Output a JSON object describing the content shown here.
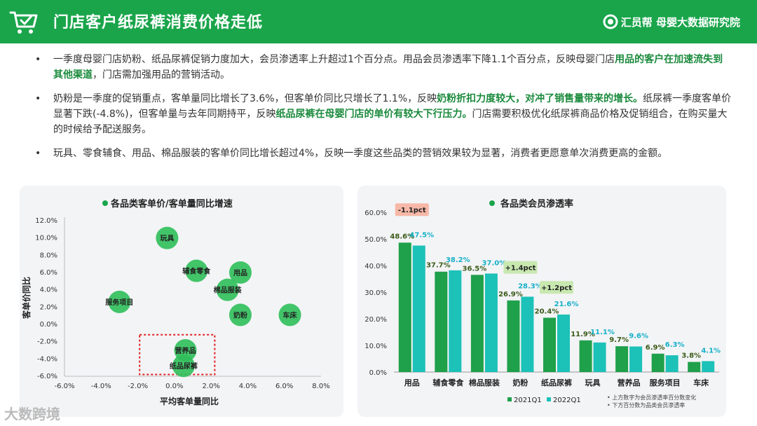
{
  "header": {
    "title": "门店客户纸尿裤消费价格走低",
    "brand": "汇员帮 母婴大数据研究院",
    "cart_icon": "shopping-cart-check-icon",
    "header_color": "#1aa54b"
  },
  "bullets": [
    {
      "parts": [
        {
          "t": "一季度母婴门店奶粉、纸品尿裤促销力度加大，会员渗透率上升超过1个百分点。用品会员渗透率下降1.1个百分点，反映母婴门店",
          "hl": false
        },
        {
          "t": "用品的客户在加速流失到其他渠道",
          "hl": true
        },
        {
          "t": "，门店需加强用品的营销活动。",
          "hl": false
        }
      ]
    },
    {
      "parts": [
        {
          "t": "奶粉是一季度的促销重点，客单量同比增长了3.6%，但客单价同比只增长了1.1%，反映",
          "hl": false
        },
        {
          "t": "奶粉折扣力度较大，对冲了销售量带来的增长。",
          "hl": true
        },
        {
          "t": "纸尿裤一季度客单价显著下跌(-4.8%)，但客单量与去年同期持平，反映",
          "hl": false
        },
        {
          "t": "纸品尿裤在母婴门店的单价有较大下行压力。",
          "hl": true
        },
        {
          "t": "门店需要积极优化纸尿裤商品价格及促销组合，在购买量大的时候给予配送服务。",
          "hl": false
        }
      ]
    },
    {
      "parts": [
        {
          "t": "玩具、零食辅食、用品、棉品服装的客单价同比增长超过4%，反映一季度这些品类的营销效果较为显著，消费者更愿意单次消费更高的金额。",
          "hl": false
        }
      ]
    }
  ],
  "chart_data": [
    {
      "type": "scatter",
      "title": "各品类客单价/客单量同比增速",
      "xlabel": "平均客单量同比",
      "ylabel": "客单价同比",
      "xlim": [
        -6.0,
        8.0
      ],
      "ylim": [
        -6.0,
        12.0
      ],
      "xticks": [
        "-6.0%",
        "-4.0%",
        "-2.0%",
        "0.0%",
        "2.0%",
        "4.0%",
        "6.0%",
        "8.0%"
      ],
      "yticks": [
        "12.0%",
        "10.0%",
        "8.0%",
        "6.0%",
        "4.0%",
        "2.0%",
        "0.0%",
        "-2.0%",
        "-4.0%",
        "-6.0%"
      ],
      "points": [
        {
          "label": "玩具",
          "x": -0.4,
          "y": 10.0
        },
        {
          "label": "辅食零食",
          "x": 1.2,
          "y": 6.2
        },
        {
          "label": "用品",
          "x": 3.6,
          "y": 6.0
        },
        {
          "label": "棉品服装",
          "x": 2.9,
          "y": 4.0
        },
        {
          "label": "服务项目",
          "x": -3.0,
          "y": 2.6
        },
        {
          "label": "奶粉",
          "x": 3.6,
          "y": 1.1
        },
        {
          "label": "车床",
          "x": 6.3,
          "y": 1.1
        },
        {
          "label": "营养品",
          "x": 0.6,
          "y": -3.0
        },
        {
          "label": "纸品尿裤",
          "x": 0.5,
          "y": -4.8
        }
      ],
      "highlight_box": {
        "x_range": [
          -1.9,
          2.2
        ],
        "y_range": [
          -5.8,
          -1.2
        ]
      },
      "point_color": "#2fbf5a",
      "highlight_color": "#e02020"
    },
    {
      "type": "bar",
      "title": "各品类会员渗透率",
      "categories": [
        "用品",
        "辅食零食",
        "棉品服装",
        "奶粉",
        "纸品尿裤",
        "玩具",
        "营养品",
        "服务项目",
        "车床"
      ],
      "series": [
        {
          "name": "2021Q1",
          "values": [
            48.6,
            37.7,
            36.5,
            26.9,
            20.4,
            11.9,
            9.7,
            6.9,
            3.8
          ],
          "labels": [
            "48.6%",
            "37.7%",
            "36.5%",
            "26.9%",
            "20.4%",
            "11.9%",
            "9.7%",
            "6.9%",
            "3.8%"
          ],
          "color": "#1fa04a"
        },
        {
          "name": "2022Q1",
          "values": [
            47.5,
            38.2,
            37.0,
            28.3,
            21.6,
            11.1,
            9.6,
            6.3,
            4.1
          ],
          "labels": [
            "47.5%",
            "38.2%",
            "37.0%",
            "28.3%",
            "21.6%",
            "11.1%",
            "9.6%",
            "6.3%",
            "4.1%"
          ],
          "color": "#1cc1b8"
        }
      ],
      "yticks": [
        "60.0%",
        "50.0%",
        "40.0%",
        "30.0%",
        "20.0%",
        "10.0%",
        "0.0%"
      ],
      "ylim": [
        0,
        60
      ],
      "annotations": [
        {
          "text": "-1.1pct",
          "category_index": 0,
          "value": 61,
          "bg": "#f7b8a8"
        },
        {
          "text": "+1.4pct",
          "category_index": 3,
          "value": 39.3,
          "bg": "#c8e8b0"
        },
        {
          "text": "+1.2pct",
          "category_index": 4,
          "value": 31.8,
          "bg": "#c8e8b0"
        }
      ],
      "notes": [
        "上方数字为会员渗透率百分数变化",
        "下方百分数为品类会员渗透率"
      ],
      "label_color_2021": "#3a5a18",
      "label_color_2022": "#16b0c8"
    }
  ],
  "watermark": "大数跨境"
}
